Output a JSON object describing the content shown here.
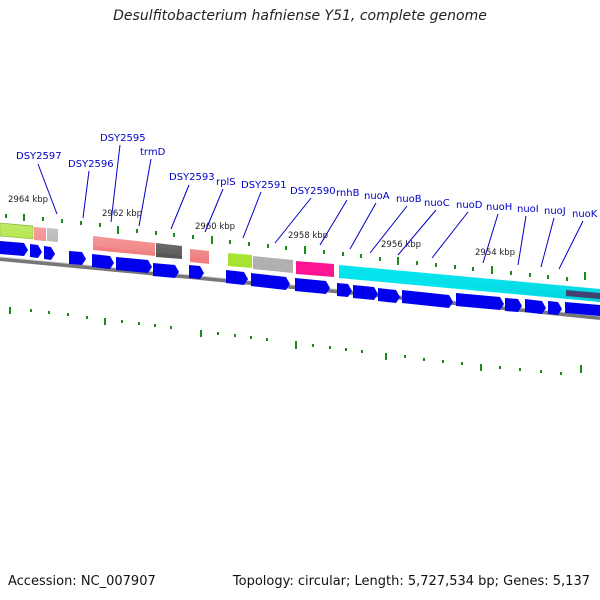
{
  "title": "Desulfitobacterium hafniense Y51, complete genome",
  "footer": {
    "accession": "Accession: NC_007907",
    "summary": "Topology: circular; Length: 5,727,534 bp; Genes: 5,137"
  },
  "scale_labels": [
    "2964 kbp",
    "2962 kbp",
    "2960 kbp",
    "2958 kbp",
    "2956 kbp",
    "2954 kbp"
  ],
  "gene_labels": [
    "DSY2597",
    "DSY2596",
    "DSY2595",
    "trmD",
    "DSY2593",
    "rplS",
    "DSY2591",
    "DSY2590",
    "rnhB",
    "nuoA",
    "nuoB",
    "nuoC",
    "nuoD",
    "nuoH",
    "nuoI",
    "nuoJ",
    "nuoK"
  ],
  "colors": {
    "label_text": "#0000c8",
    "cds_arrow": "#0000ee",
    "tick": "#1a8a1a",
    "backbone": "#777777",
    "cyan": "#00e5ee",
    "pink": "#ff1493",
    "salmon": "#f08080",
    "lime": "#a6e22e",
    "gray": "#b0b0b0",
    "dark": "#555555"
  }
}
